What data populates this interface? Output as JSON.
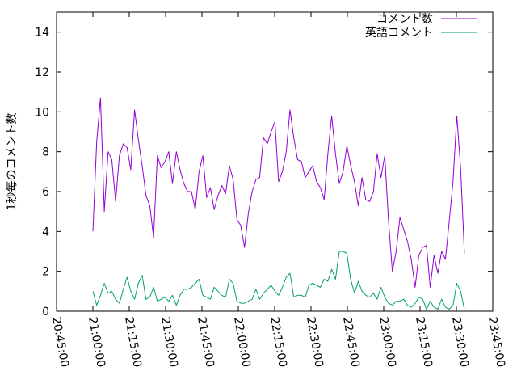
{
  "chart_data": {
    "type": "line",
    "title": "",
    "xlabel": "",
    "ylabel": "1秒毎のコメント数",
    "ylim": [
      0,
      15
    ],
    "xlim": [
      "20:45:00",
      "23:45:00"
    ],
    "yticks": [
      "0",
      "2",
      "4",
      "6",
      "8",
      "10",
      "12",
      "14"
    ],
    "xticks": [
      "20:45:00",
      "21:00:00",
      "21:15:00",
      "21:30:00",
      "21:45:00",
      "22:00:00",
      "22:15:00",
      "22:30:00",
      "22:45:00",
      "23:00:00",
      "23:15:00",
      "23:30:00",
      "23:45:00"
    ],
    "grid": false,
    "legend_position": "top-right",
    "x": [
      "21:00:00",
      "21:01:34",
      "21:03:08",
      "21:04:42",
      "21:06:15",
      "21:07:49",
      "21:09:23",
      "21:10:57",
      "21:12:31",
      "21:14:05",
      "21:15:38",
      "21:17:12",
      "21:18:46",
      "21:20:20",
      "21:21:54",
      "21:23:28",
      "21:25:02",
      "21:26:35",
      "21:28:09",
      "21:29:43",
      "21:31:17",
      "21:32:51",
      "21:34:25",
      "21:35:58",
      "21:37:32",
      "21:39:06",
      "21:40:40",
      "21:42:14",
      "21:43:48",
      "21:45:22",
      "21:46:55",
      "21:48:29",
      "21:50:03",
      "21:51:37",
      "21:53:11",
      "21:54:45",
      "21:56:18",
      "21:57:52",
      "21:59:26",
      "22:01:00",
      "22:02:34",
      "22:04:08",
      "22:05:42",
      "22:07:15",
      "22:08:49",
      "22:10:23",
      "22:11:57",
      "22:13:31",
      "22:15:05",
      "22:16:38",
      "22:18:12",
      "22:19:46",
      "22:21:20",
      "22:22:54",
      "22:24:28",
      "22:26:02",
      "22:27:35",
      "22:29:09",
      "22:30:43",
      "22:32:17",
      "22:33:51",
      "22:35:25",
      "22:36:58",
      "22:38:32",
      "22:40:06",
      "22:41:40",
      "22:43:14",
      "22:44:48",
      "22:46:22",
      "22:47:55",
      "22:49:29",
      "22:51:03",
      "22:52:37",
      "22:54:11",
      "22:55:45",
      "22:57:18",
      "22:58:52",
      "23:00:26",
      "23:02:00",
      "23:03:34",
      "23:05:08",
      "23:06:42",
      "23:08:15",
      "23:09:49",
      "23:11:23",
      "23:12:57",
      "23:14:31",
      "23:16:05",
      "23:17:38",
      "23:19:12",
      "23:20:46",
      "23:22:20",
      "23:23:54",
      "23:25:28",
      "23:27:02",
      "23:28:35",
      "23:30:09",
      "23:31:43",
      "23:33:17"
    ],
    "series": [
      {
        "name": "コメント数",
        "color": "#9400d3",
        "values": [
          4.0,
          8.5,
          10.7,
          5.0,
          8.0,
          7.6,
          5.5,
          7.8,
          8.4,
          8.2,
          7.1,
          10.1,
          8.6,
          7.3,
          5.8,
          5.3,
          3.7,
          7.8,
          7.2,
          7.5,
          8.0,
          6.4,
          8.0,
          7.1,
          6.4,
          6.0,
          6.0,
          5.1,
          7.0,
          7.8,
          5.7,
          6.2,
          5.1,
          5.8,
          6.3,
          5.9,
          7.3,
          6.6,
          4.6,
          4.3,
          3.2,
          4.9,
          6.0,
          6.6,
          6.7,
          8.7,
          8.4,
          9.0,
          9.5,
          6.5,
          7.0,
          8.0,
          10.1,
          8.7,
          7.6,
          7.5,
          6.7,
          7.0,
          7.3,
          6.5,
          6.2,
          5.6,
          7.9,
          9.8,
          7.9,
          6.4,
          7.0,
          8.3,
          7.3,
          6.5,
          5.3,
          6.7,
          5.6,
          5.5,
          6.0,
          7.9,
          6.7,
          7.8,
          4.5,
          2.0,
          3.0,
          4.7,
          4.1,
          3.5,
          2.6,
          1.2,
          2.8,
          3.2,
          3.3,
          1.2,
          2.8,
          1.9,
          3.0,
          2.6,
          4.5,
          6.5,
          9.8,
          7.2,
          2.9
        ]
      },
      {
        "name": "英語コメント",
        "color": "#009e73",
        "values": [
          1.0,
          0.3,
          0.8,
          1.4,
          0.9,
          1.0,
          0.6,
          0.4,
          1.1,
          1.7,
          1.0,
          0.6,
          1.4,
          1.8,
          0.6,
          0.7,
          1.2,
          0.5,
          0.6,
          0.7,
          0.5,
          0.8,
          0.3,
          0.8,
          1.1,
          1.1,
          1.2,
          1.4,
          1.6,
          0.8,
          0.7,
          0.6,
          1.2,
          1.0,
          0.8,
          0.7,
          1.6,
          1.4,
          0.5,
          0.4,
          0.4,
          0.5,
          0.6,
          1.1,
          0.6,
          0.9,
          1.1,
          1.3,
          1.0,
          0.8,
          1.2,
          1.7,
          1.9,
          0.7,
          0.8,
          0.8,
          0.7,
          1.3,
          1.4,
          1.3,
          1.2,
          1.6,
          1.5,
          2.1,
          1.6,
          3.0,
          3.0,
          2.9,
          1.6,
          0.9,
          1.5,
          1.0,
          0.8,
          0.7,
          0.9,
          0.6,
          1.2,
          0.7,
          0.4,
          0.3,
          0.5,
          0.5,
          0.6,
          0.3,
          0.2,
          0.4,
          0.7,
          0.6,
          0.1,
          0.5,
          0.2,
          0.1,
          0.6,
          0.2,
          0.1,
          0.3,
          1.4,
          1.0,
          0.1
        ]
      }
    ]
  }
}
